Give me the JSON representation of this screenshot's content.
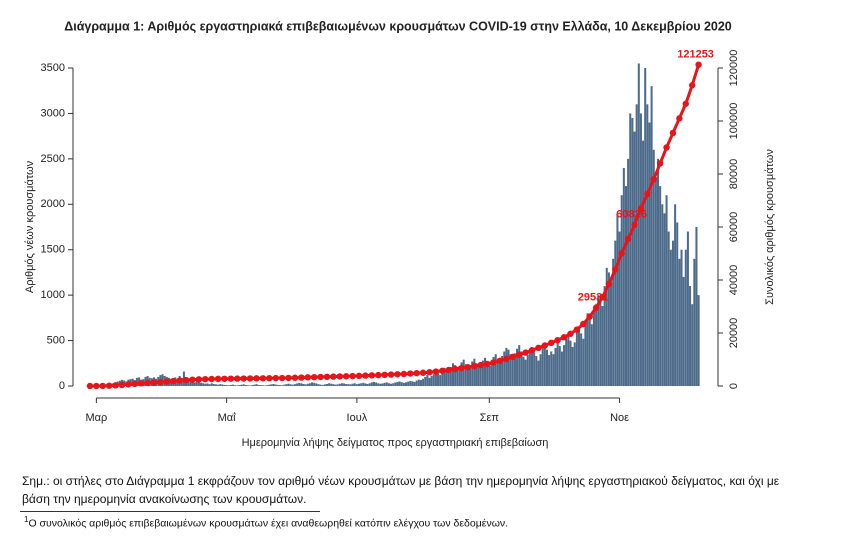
{
  "chart_data": {
    "type": "bar",
    "title": "Διάγραμμα 1: Αριθμός εργαστηριακά επιβεβαιωμένων κρουσμάτων COVID-19 στην Ελλάδα, 10 Δεκεμβρίου 2020",
    "y_label": "Αριθμός νέων κρουσμάτων",
    "y2_label": "Συνολικός αριθμός κρουσμάτων",
    "x_label": "Ημερομηνία λήψης δείγματος προς εργαστηριακή επιβεβαίωση",
    "xlim": [
      51,
      346
    ],
    "xticks": [
      {
        "value": 61,
        "label": "Μαρ"
      },
      {
        "value": 122,
        "label": "Μαΐ"
      },
      {
        "value": 183,
        "label": "Ιουλ"
      },
      {
        "value": 245,
        "label": "Σεπ"
      },
      {
        "value": 306,
        "label": "Νοε"
      }
    ],
    "ylim": [
      0,
      3500
    ],
    "yticks": [
      0,
      500,
      1000,
      1500,
      2000,
      2500,
      3000,
      3500
    ],
    "y2lim": [
      0,
      120000
    ],
    "y2ticks": [
      0,
      20000,
      40000,
      60000,
      80000,
      100000,
      120000
    ],
    "x": [
      57,
      58,
      59,
      60,
      61,
      62,
      63,
      64,
      65,
      66,
      67,
      68,
      69,
      70,
      71,
      72,
      73,
      74,
      75,
      76,
      77,
      78,
      79,
      80,
      81,
      82,
      83,
      84,
      85,
      86,
      87,
      88,
      89,
      90,
      91,
      92,
      93,
      94,
      95,
      96,
      97,
      98,
      99,
      100,
      101,
      102,
      103,
      104,
      105,
      106,
      107,
      108,
      109,
      110,
      111,
      112,
      113,
      114,
      115,
      116,
      117,
      118,
      119,
      120,
      121,
      122,
      123,
      124,
      125,
      126,
      127,
      128,
      129,
      130,
      131,
      132,
      133,
      134,
      135,
      136,
      137,
      138,
      139,
      140,
      141,
      142,
      143,
      144,
      145,
      146,
      147,
      148,
      149,
      150,
      151,
      152,
      153,
      154,
      155,
      156,
      157,
      158,
      159,
      160,
      161,
      162,
      163,
      164,
      165,
      166,
      167,
      168,
      169,
      170,
      171,
      172,
      173,
      174,
      175,
      176,
      177,
      178,
      179,
      180,
      181,
      182,
      183,
      184,
      185,
      186,
      187,
      188,
      189,
      190,
      191,
      192,
      193,
      194,
      195,
      196,
      197,
      198,
      199,
      200,
      201,
      202,
      203,
      204,
      205,
      206,
      207,
      208,
      209,
      210,
      211,
      212,
      213,
      214,
      215,
      216,
      217,
      218,
      219,
      220,
      221,
      222,
      223,
      224,
      225,
      226,
      227,
      228,
      229,
      230,
      231,
      232,
      233,
      234,
      235,
      236,
      237,
      238,
      239,
      240,
      241,
      242,
      243,
      244,
      245,
      246,
      247,
      248,
      249,
      250,
      251,
      252,
      253,
      254,
      255,
      256,
      257,
      258,
      259,
      260,
      261,
      262,
      263,
      264,
      265,
      266,
      267,
      268,
      269,
      270,
      271,
      272,
      273,
      274,
      275,
      276,
      277,
      278,
      279,
      280,
      281,
      282,
      283,
      284,
      285,
      286,
      287,
      288,
      289,
      290,
      291,
      292,
      293,
      294,
      295,
      296,
      297,
      298,
      299,
      300,
      301,
      302,
      303,
      304,
      305,
      306,
      307,
      308,
      309,
      310,
      311,
      312,
      313,
      314,
      315,
      316,
      317,
      318,
      319,
      320,
      321,
      322,
      323,
      324,
      325,
      326,
      327,
      328,
      329,
      330,
      331,
      332,
      333,
      334,
      335,
      336,
      337,
      338,
      339,
      340,
      341,
      342,
      343
    ],
    "series": [
      {
        "type": "bar",
        "axis": "y",
        "color": "#4d6b8a",
        "values": [
          1,
          2,
          0,
          3,
          2,
          3,
          5,
          9,
          14,
          20,
          25,
          27,
          30,
          42,
          50,
          58,
          68,
          60,
          50,
          70,
          75,
          80,
          65,
          90,
          95,
          70,
          75,
          100,
          110,
          90,
          85,
          95,
          80,
          100,
          120,
          130,
          110,
          100,
          90,
          80,
          75,
          95,
          60,
          110,
          90,
          159,
          70,
          60,
          50,
          45,
          40,
          55,
          40,
          35,
          30,
          25,
          28,
          20,
          30,
          22,
          18,
          15,
          20,
          17,
          12,
          10,
          8,
          12,
          15,
          9,
          7,
          10,
          14,
          18,
          12,
          8,
          6,
          10,
          15,
          20,
          12,
          10,
          8,
          6,
          10,
          14,
          18,
          22,
          16,
          12,
          10,
          8,
          15,
          20,
          25,
          18,
          15,
          20,
          28,
          35,
          30,
          22,
          18,
          25,
          30,
          40,
          35,
          28,
          20,
          15,
          12,
          18,
          22,
          30,
          25,
          20,
          15,
          18,
          25,
          30,
          28,
          22,
          20,
          18,
          25,
          30,
          20,
          25,
          30,
          35,
          28,
          22,
          30,
          40,
          45,
          38,
          30,
          25,
          28,
          35,
          40,
          30,
          25,
          30,
          38,
          45,
          50,
          42,
          35,
          40,
          48,
          55,
          50,
          45,
          60,
          70,
          65,
          80,
          100,
          120,
          90,
          110,
          130,
          150,
          140,
          120,
          180,
          200,
          170,
          160,
          210,
          250,
          230,
          190,
          220,
          260,
          290,
          240,
          200,
          230,
          270,
          300,
          250,
          220,
          260,
          280,
          310,
          240,
          220,
          280,
          320,
          350,
          300,
          260,
          330,
          380,
          420,
          400,
          350,
          300,
          360,
          410,
          450,
          380,
          320,
          290,
          340,
          400,
          430,
          370,
          330,
          280,
          350,
          420,
          460,
          400,
          340,
          380,
          350,
          420,
          480,
          440,
          380,
          450,
          520,
          560,
          500,
          430,
          480,
          600,
          650,
          580,
          520,
          700,
          800,
          750,
          680,
          820,
          900,
          1000,
          950,
          880,
          1100,
          1300,
          1250,
          1150,
          1400,
          1600,
          1900,
          1700,
          2100,
          2400,
          2200,
          2500,
          3000,
          2950,
          2800,
          3100,
          3550,
          3000,
          2700,
          3500,
          3100,
          2900,
          3300,
          2600,
          2300,
          2500,
          2200,
          2000,
          1900,
          2100,
          1700,
          1500,
          1600,
          2000,
          1800,
          1400,
          1500,
          1200,
          1500,
          1700,
          1100,
          900,
          1400,
          1750,
          1000
        ]
      },
      {
        "type": "line",
        "axis": "y2",
        "color": "#e8141a",
        "labeled_points": [
          79,
          85,
          95
        ],
        "x": [
          58,
          61,
          64,
          67,
          70,
          73,
          76,
          79,
          82,
          85,
          88,
          91,
          94,
          97,
          100,
          103,
          106,
          109,
          112,
          115,
          118,
          121,
          124,
          127,
          130,
          133,
          136,
          139,
          142,
          145,
          148,
          151,
          154,
          157,
          160,
          163,
          166,
          169,
          172,
          175,
          178,
          181,
          184,
          187,
          190,
          193,
          196,
          199,
          202,
          205,
          208,
          211,
          214,
          217,
          220,
          223,
          226,
          229,
          232,
          235,
          238,
          241,
          244,
          247,
          250,
          253,
          256,
          259,
          262,
          265,
          268,
          271,
          274,
          277,
          280,
          283,
          286,
          289,
          292,
          295,
          298,
          301,
          304,
          307,
          310,
          313,
          316,
          319,
          322,
          325,
          328,
          331,
          334,
          337,
          340,
          343
        ],
        "values": [
          5,
          10,
          40,
          100,
          220,
          400,
          600,
          800,
          1000,
          1150,
          1300,
          1450,
          1650,
          1850,
          2050,
          2250,
          2400,
          2500,
          2580,
          2640,
          2690,
          2730,
          2760,
          2790,
          2820,
          2850,
          2880,
          2910,
          2940,
          2970,
          3010,
          3060,
          3110,
          3180,
          3260,
          3340,
          3410,
          3470,
          3540,
          3610,
          3680,
          3750,
          3830,
          3920,
          4020,
          4120,
          4220,
          4320,
          4420,
          4540,
          4700,
          4850,
          5000,
          5200,
          5450,
          5750,
          6050,
          6400,
          6750,
          7100,
          7500,
          7900,
          8300,
          8900,
          9500,
          10200,
          11000,
          11800,
          12600,
          13500,
          14400,
          15300,
          16300,
          17300,
          18400,
          19700,
          21300,
          23400,
          26200,
          29531,
          33500,
          38500,
          44000,
          50000,
          55500,
          60826,
          67000,
          72500,
          78000,
          84000,
          90000,
          95500,
          101000,
          106500,
          113500,
          121253
        ]
      }
    ]
  },
  "note": "Σημ.: οι στήλες στο Διάγραμμα 1 εκφράζουν τον αριθμό νέων κρουσμάτων με βάση την ημερομηνία λήψης εργαστηριακού δείγματος, και όχι με βάση την ημερομηνία ανακοίνωσης των κρουσμάτων.",
  "footnote": {
    "marker": "1",
    "text": "Ο συνολικός αριθμός επιβεβαιωμένων κρουσμάτων έχει αναθεωρηθεί κατόπιν ελέγχου των δεδομένων."
  }
}
